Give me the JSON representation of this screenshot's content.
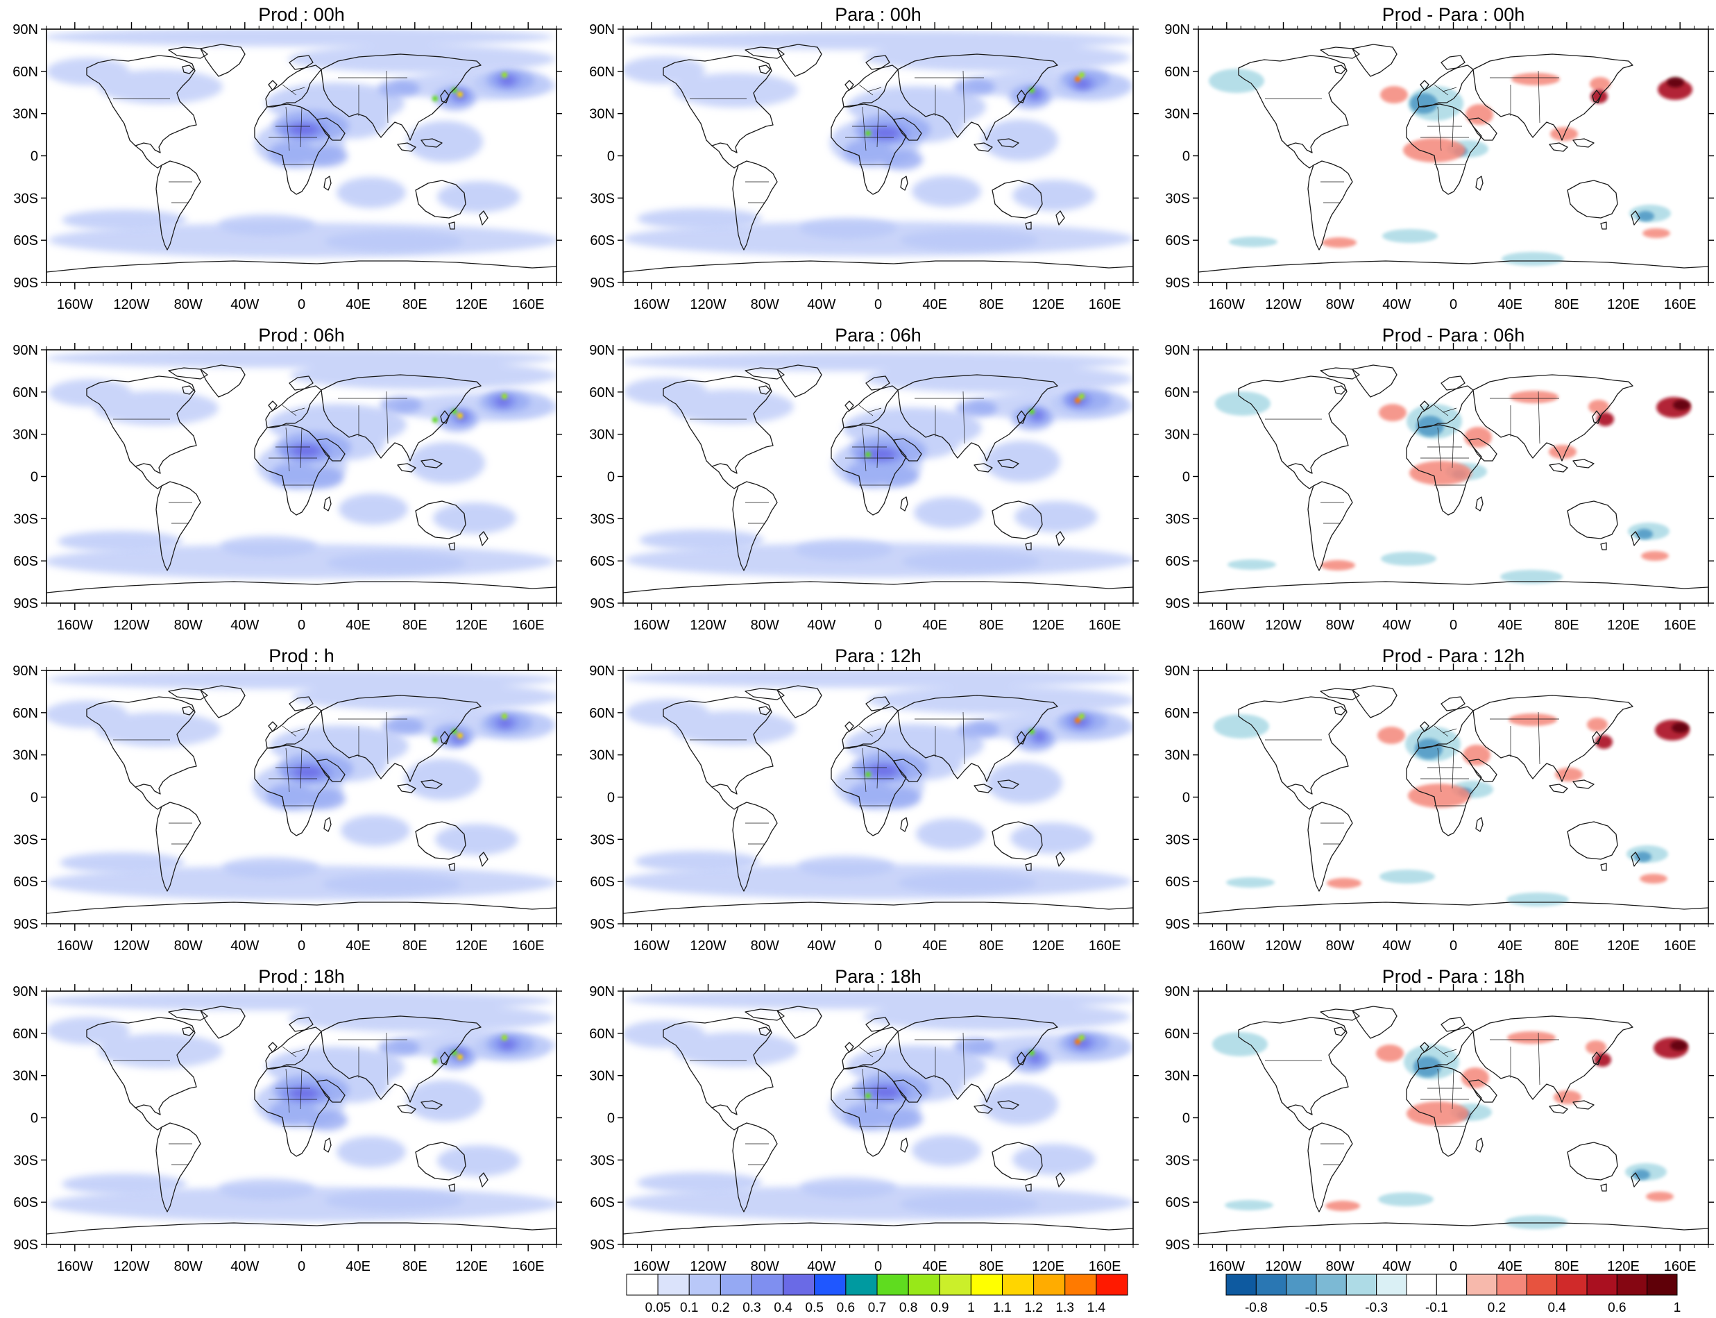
{
  "figure": {
    "panels": [
      {
        "title": "Prod : 00h",
        "kind": "field"
      },
      {
        "title": "Para : 00h",
        "kind": "field"
      },
      {
        "title": "Prod - Para : 00h",
        "kind": "diff"
      },
      {
        "title": "Prod : 06h",
        "kind": "field"
      },
      {
        "title": "Para : 06h",
        "kind": "field"
      },
      {
        "title": "Prod - Para : 06h",
        "kind": "diff"
      },
      {
        "title": "Prod : h",
        "kind": "field"
      },
      {
        "title": "Para : 12h",
        "kind": "field"
      },
      {
        "title": "Prod - Para : 12h",
        "kind": "diff"
      },
      {
        "title": "Prod : 18h",
        "kind": "field"
      },
      {
        "title": "Para : 18h",
        "kind": "field"
      },
      {
        "title": "Prod - Para : 18h",
        "kind": "diff"
      }
    ],
    "lat_labels": [
      "90N",
      "60N",
      "30N",
      "0",
      "30S",
      "60S",
      "90S"
    ],
    "lon_labels": [
      "160W",
      "120W",
      "80W",
      "40W",
      "0",
      "40E",
      "80E",
      "120E",
      "160E"
    ],
    "colorbar_field": {
      "labels": [
        "0.05",
        "0.1",
        "0.2",
        "0.3",
        "0.4",
        "0.5",
        "0.6",
        "0.7",
        "0.8",
        "0.9",
        "1",
        "1.1",
        "1.2",
        "1.3",
        "1.4"
      ],
      "colors": [
        "#ffffff",
        "#dbe3fb",
        "#b9c8f8",
        "#95a9f3",
        "#7f8ff0",
        "#6a6ae6",
        "#1f57ff",
        "#009aa0",
        "#5fdc1f",
        "#98e818",
        "#cbef2a",
        "#ffff00",
        "#ffd500",
        "#ffac00",
        "#ff7a00",
        "#ff1a00"
      ]
    },
    "colorbar_diff": {
      "labels": [
        "-0.8",
        "-0.5",
        "-0.3",
        "-0.1",
        "0.2",
        "0.4",
        "0.6",
        "1"
      ],
      "colors": [
        "#0e5aa0",
        "#2a77b3",
        "#4e97c4",
        "#7cb9d4",
        "#aedbe6",
        "#daf0f5",
        "#ffffff",
        "#ffffff",
        "#f7b9ac",
        "#f4877a",
        "#e7533f",
        "#d02a2a",
        "#aa1020",
        "#850612",
        "#5f0008"
      ]
    }
  }
}
